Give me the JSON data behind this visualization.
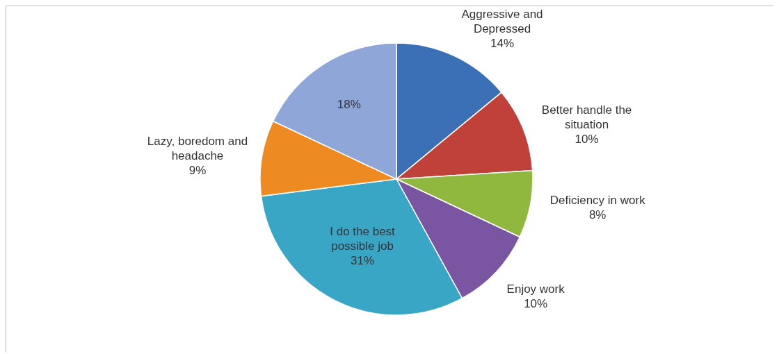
{
  "chart_data": {
    "type": "pie",
    "categories": [
      "Aggressive and Depressed",
      "Better handle the situation",
      "Deficiency in work",
      "Enjoy work",
      "I do the best possible job",
      "Lazy, boredom and headache",
      null
    ],
    "values": [
      14,
      10,
      8,
      10,
      31,
      9,
      18
    ],
    "value_labels": [
      "14%",
      "10%",
      "8%",
      "10%",
      "31%",
      "9%",
      "18%"
    ],
    "colors": [
      "#3b6fb6",
      "#c0403a",
      "#90b83e",
      "#7a55a2",
      "#3aa6c6",
      "#ee8a22",
      "#8ea6d8"
    ],
    "legend": false
  }
}
